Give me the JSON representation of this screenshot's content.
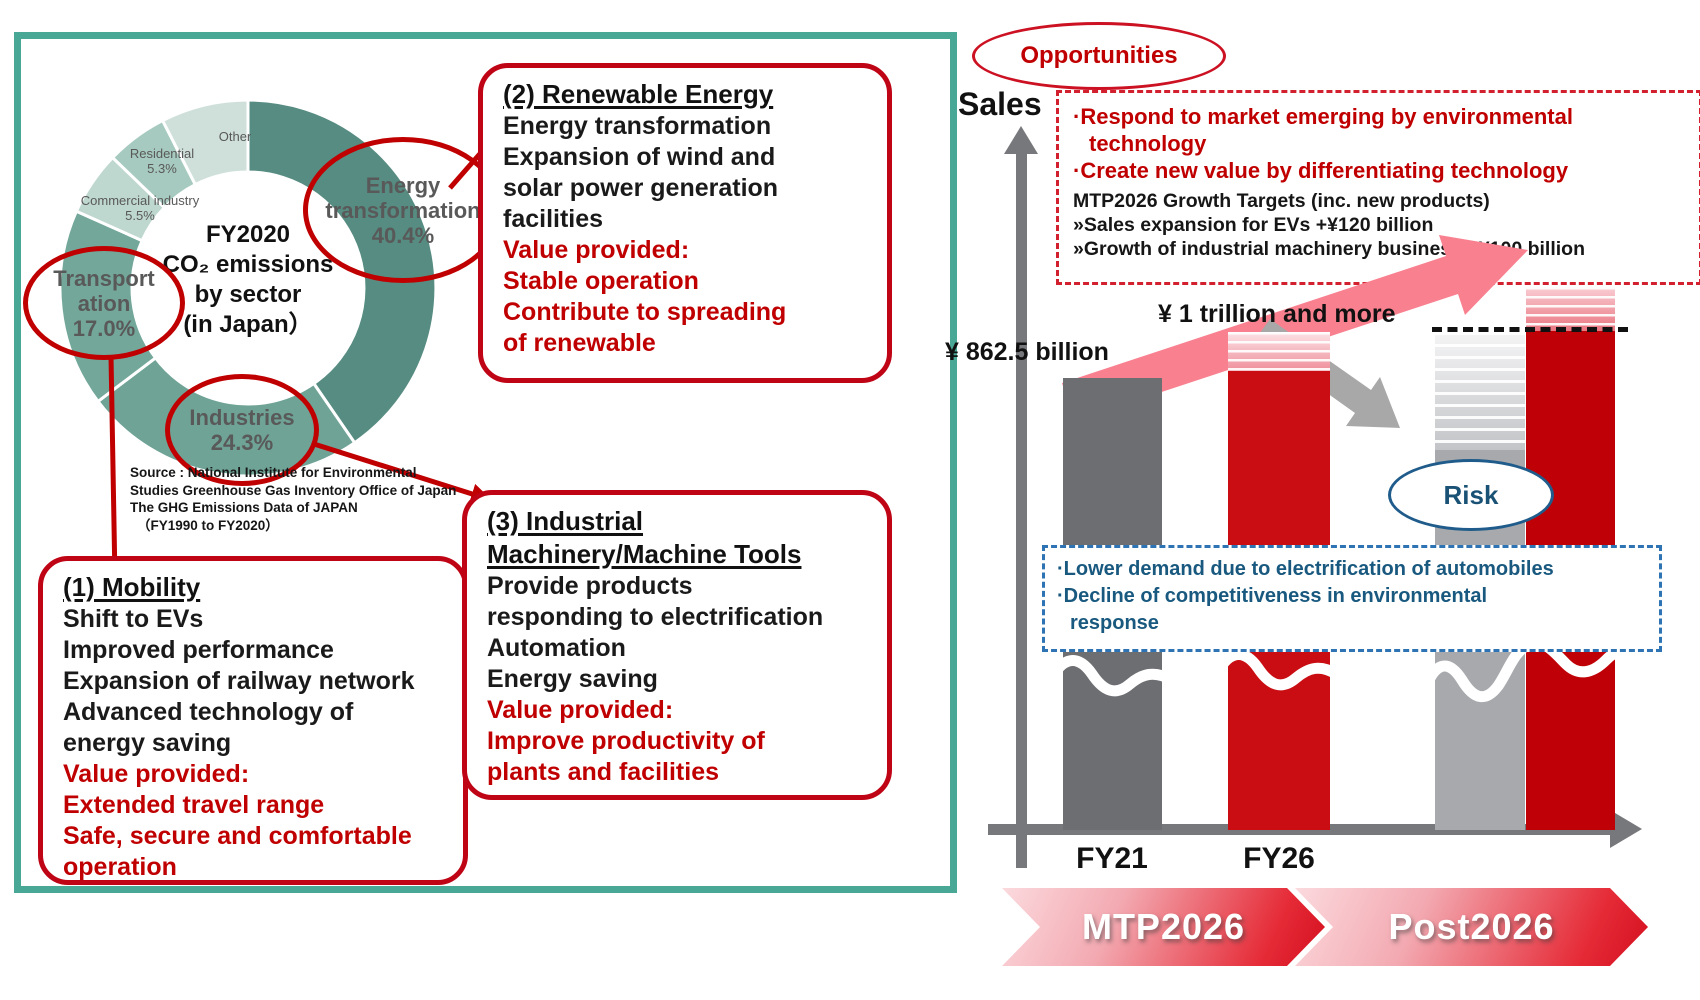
{
  "left_panel": {
    "donut": {
      "center_lines": [
        "FY2020",
        "CO₂ emissions",
        "by sector",
        "(in Japan）"
      ],
      "other_label": "Other",
      "residential_label": "Residential",
      "residential_pct": "5.3%",
      "commercial_label": "Commercial industry",
      "commercial_pct": "5.5%"
    },
    "highlights": {
      "energy": {
        "lines": [
          "Energy",
          "transformation",
          "40.4%"
        ]
      },
      "transportation": {
        "lines": [
          "Transport",
          "ation",
          "17.0%"
        ]
      },
      "industries": {
        "lines": [
          "Industries",
          "24.3%"
        ]
      }
    },
    "source_lines": [
      {
        "text": "Source : National Institute for Environmental",
        "style": "first"
      },
      {
        "text": "Studies Greenhouse Gas Inventory Office of Japan",
        "style": "first"
      },
      {
        "text": "The GHG Emissions Data of JAPAN",
        "style": "first"
      },
      {
        "text": "（FY1990 to FY2020）",
        "style": "cont"
      }
    ],
    "boxes": [
      {
        "id": "mobility",
        "title_lines": [
          "(1) Mobility"
        ],
        "lines": [
          {
            "text": "Shift to EVs",
            "color": "black"
          },
          {
            "text": "Improved performance",
            "color": "black"
          },
          {
            "text": "Expansion of railway network",
            "color": "black"
          },
          {
            "text": "Advanced technology of",
            "color": "black"
          },
          {
            "text": "energy saving",
            "color": "black"
          },
          {
            "text": "Value provided:",
            "color": "red"
          },
          {
            "text": "Extended travel range",
            "color": "red"
          },
          {
            "text": "Safe, secure and comfortable",
            "color": "red"
          },
          {
            "text": "operation",
            "color": "red"
          }
        ]
      },
      {
        "id": "renewable-energy",
        "title_lines": [
          "(2) Renewable Energy"
        ],
        "lines": [
          {
            "text": "Energy transformation",
            "color": "black"
          },
          {
            "text": "Expansion of wind and",
            "color": "black"
          },
          {
            "text": "solar power generation",
            "color": "black"
          },
          {
            "text": "facilities",
            "color": "black"
          },
          {
            "text": "Value provided:",
            "color": "red"
          },
          {
            "text": "Stable operation",
            "color": "red"
          },
          {
            "text": "Contribute to spreading",
            "color": "red"
          },
          {
            "text": "of renewable",
            "color": "red"
          }
        ]
      },
      {
        "id": "industrial-machinery",
        "title_lines": [
          "(3) Industrial",
          "Machinery/Machine Tools"
        ],
        "lines": [
          {
            "text": "Provide products",
            "color": "black"
          },
          {
            "text": "responding to electrification",
            "color": "black"
          },
          {
            "text": "Automation",
            "color": "black"
          },
          {
            "text": "Energy saving",
            "color": "black"
          },
          {
            "text": "Value provided:",
            "color": "red"
          },
          {
            "text": "Improve productivity of",
            "color": "red"
          },
          {
            "text": "plants and facilities",
            "color": "red"
          }
        ]
      }
    ]
  },
  "right_panel": {
    "opportunities_label": "Opportunities",
    "sales_label": "Sales",
    "opportunity_box": {
      "red_lines": [
        {
          "text": "·Respond to market emerging by environmental",
          "style": "bullet"
        },
        {
          "text": "technology",
          "style": "cont"
        },
        {
          "text": "·Create new value by differentiating technology",
          "style": "bullet"
        }
      ],
      "black_lines": [
        {
          "text": "MTP2026 Growth Targets (inc. new products)"
        },
        {
          "text": "»Sales expansion for EVs +¥120 billion"
        },
        {
          "text": "»Growth of industrial machinery business +¥100 billion"
        }
      ]
    },
    "bar_value_labels": {
      "fy21": "¥ 862.5 billion",
      "fy26": "¥ 1 trillion and more"
    },
    "axis_labels": {
      "fy21": "FY21",
      "fy26": "FY26"
    },
    "risk_label": "Risk",
    "risk_box_lines": [
      {
        "text": "·Lower demand due to electrification of automobiles",
        "style": "bullet"
      },
      {
        "text": "·Decline of competitiveness in environmental",
        "style": "bullet"
      },
      {
        "text": "response",
        "style": "cont"
      }
    ],
    "timeline": {
      "mtp": "MTP2026",
      "post": "Post2026"
    }
  },
  "colors": {
    "panel_teal": "#49a795",
    "crimson": "#c00000",
    "bar_gray": "#6d6e71",
    "bar_red": "#c90d12",
    "bar_light_gray": "#a7a9ac",
    "bar_dark_red": "#bf0006",
    "risk_blue": "#1a5276",
    "axis_gray": "#77787b"
  },
  "chart_data": [
    {
      "type": "pie",
      "subtype": "donut",
      "title": "FY2020 CO₂ emissions by sector (in Japan）",
      "categories": [
        "Energy transformation",
        "Industries",
        "Transportation",
        "Commercial industry",
        "Residential",
        "Other"
      ],
      "values": [
        40.4,
        24.3,
        17.0,
        5.5,
        5.3,
        7.5
      ],
      "unit": "%",
      "colors": [
        "#568c81",
        "#6fa396",
        "#73a79a",
        "#bed7cf",
        "#a6cabf",
        "#cfe0da"
      ],
      "legend_position": "on-chart labels",
      "highlighted_segments": [
        "Energy transformation",
        "Industries",
        "Transportation"
      ]
    },
    {
      "type": "bar",
      "title": "Sales",
      "ylabel": "Sales",
      "xlabel": "",
      "categories": [
        "FY21",
        "FY26",
        "Post2026 risk scenario",
        "Post2026 opportunity scenario"
      ],
      "values": [
        862.5,
        1000,
        null,
        null
      ],
      "value_labels": [
        "¥ 862.5 billion",
        "¥ 1 trillion and more",
        "",
        ""
      ],
      "unit": "¥ billion",
      "bar_colors": [
        "#6d6e71",
        "#c90d12",
        "#a7a9ac",
        "#bf0006"
      ],
      "axis_scale": "schematic, broken bars (no numeric axis)",
      "annotations": [
        "Opportunities",
        "Risk",
        "MTP2026",
        "Post2026"
      ]
    }
  ]
}
